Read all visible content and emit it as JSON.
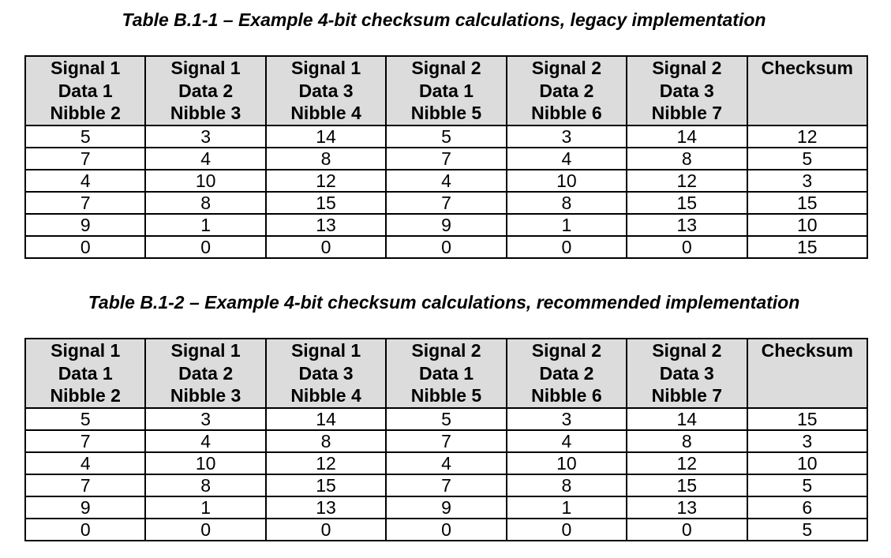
{
  "tables": [
    {
      "caption": "Table B.1-1 – Example 4-bit checksum calculations, legacy implementation",
      "headers": [
        [
          "Signal 1",
          "Data 1",
          "Nibble 2"
        ],
        [
          "Signal 1",
          "Data 2",
          "Nibble 3"
        ],
        [
          "Signal 1",
          "Data 3",
          "Nibble 4"
        ],
        [
          "Signal 2",
          "Data 1",
          "Nibble 5"
        ],
        [
          "Signal 2",
          "Data 2",
          "Nibble 6"
        ],
        [
          "Signal 2",
          "Data 3",
          "Nibble 7"
        ],
        [
          "Checksum"
        ]
      ],
      "rows": [
        [
          "5",
          "3",
          "14",
          "5",
          "3",
          "14",
          "12"
        ],
        [
          "7",
          "4",
          "8",
          "7",
          "4",
          "8",
          "5"
        ],
        [
          "4",
          "10",
          "12",
          "4",
          "10",
          "12",
          "3"
        ],
        [
          "7",
          "8",
          "15",
          "7",
          "8",
          "15",
          "15"
        ],
        [
          "9",
          "1",
          "13",
          "9",
          "1",
          "13",
          "10"
        ],
        [
          "0",
          "0",
          "0",
          "0",
          "0",
          "0",
          "15"
        ]
      ]
    },
    {
      "caption": "Table B.1-2 – Example 4-bit checksum calculations, recommended implementation",
      "headers": [
        [
          "Signal 1",
          "Data 1",
          "Nibble 2"
        ],
        [
          "Signal 1",
          "Data 2",
          "Nibble 3"
        ],
        [
          "Signal 1",
          "Data 3",
          "Nibble 4"
        ],
        [
          "Signal 2",
          "Data 1",
          "Nibble 5"
        ],
        [
          "Signal 2",
          "Data 2",
          "Nibble 6"
        ],
        [
          "Signal 2",
          "Data 3",
          "Nibble 7"
        ],
        [
          "Checksum"
        ]
      ],
      "rows": [
        [
          "5",
          "3",
          "14",
          "5",
          "3",
          "14",
          "15"
        ],
        [
          "7",
          "4",
          "8",
          "7",
          "4",
          "8",
          "3"
        ],
        [
          "4",
          "10",
          "12",
          "4",
          "10",
          "12",
          "10"
        ],
        [
          "7",
          "8",
          "15",
          "7",
          "8",
          "15",
          "5"
        ],
        [
          "9",
          "1",
          "13",
          "9",
          "1",
          "13",
          "6"
        ],
        [
          "0",
          "0",
          "0",
          "0",
          "0",
          "0",
          "5"
        ]
      ]
    }
  ]
}
